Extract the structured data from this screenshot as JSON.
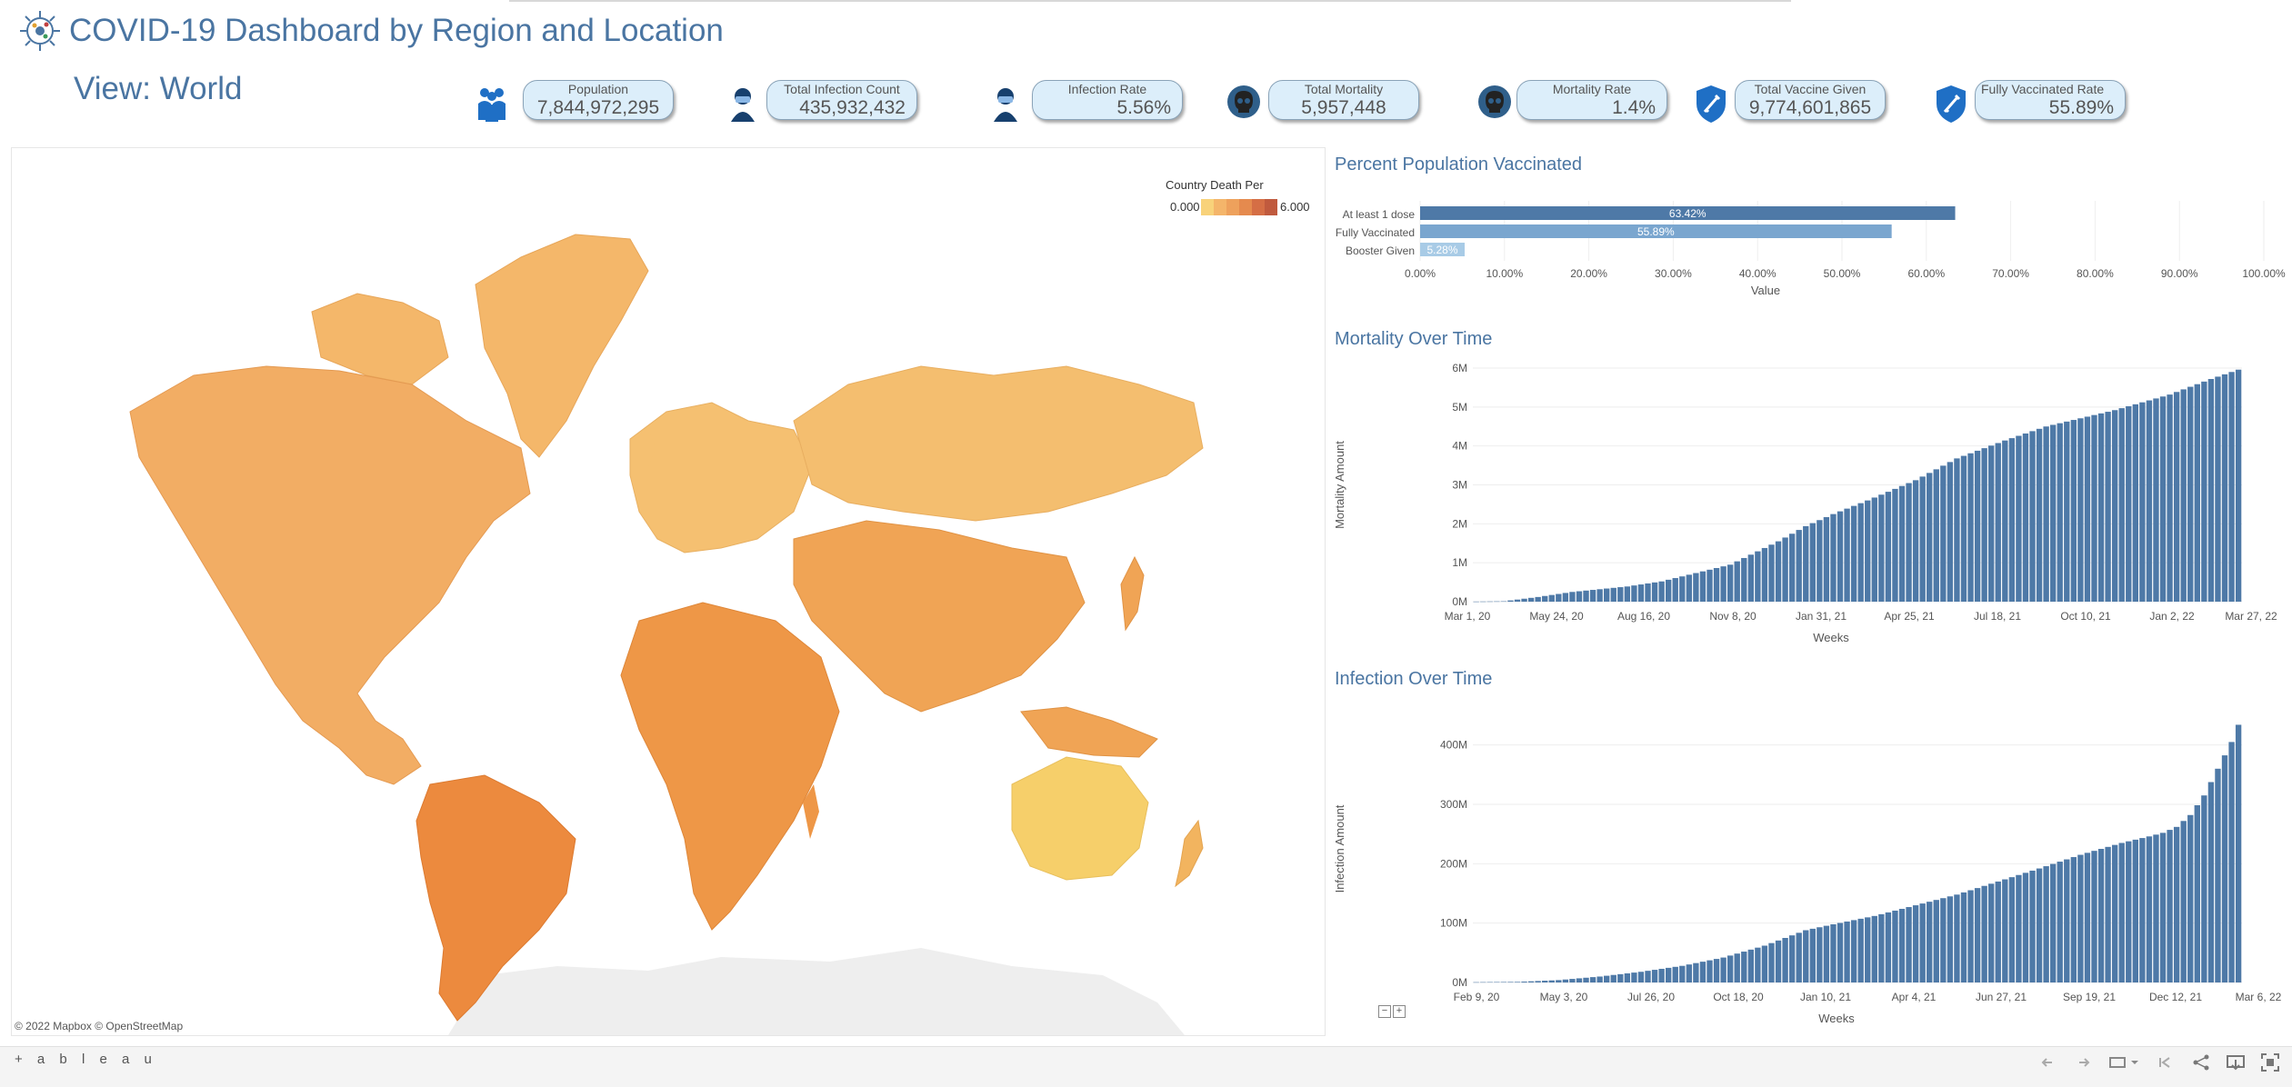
{
  "header": {
    "title": "COVID-19 Dashboard by Region and Location",
    "view": "View: World"
  },
  "kpis": [
    {
      "label": "Population",
      "value": "7,844,972,295",
      "icon": "people-icon"
    },
    {
      "label": "Total Infection Count",
      "value": "435,932,432",
      "icon": "masked-person-icon"
    },
    {
      "label": "Infection Rate",
      "value": "5.56%",
      "icon": "masked-person-icon"
    },
    {
      "label": "Total Mortality",
      "value": "5,957,448",
      "icon": "skull-icon"
    },
    {
      "label": "Mortality Rate",
      "value": "1.4%",
      "icon": "skull-icon"
    },
    {
      "label": "Total Vaccine Given",
      "value": "9,774,601,865",
      "icon": "syringe-shield-icon"
    },
    {
      "label": "Fully Vaccinated Rate",
      "value": "55.89%",
      "icon": "syringe-shield-icon"
    }
  ],
  "map": {
    "legend_title": "Country Death Per",
    "legend_min": "0.000",
    "legend_max": "6.000",
    "legend_colors": [
      "#f8d27a",
      "#f4b56a",
      "#eea15c",
      "#e58a4e",
      "#d56e45",
      "#c05a3e"
    ],
    "credit": "© 2022 Mapbox © OpenStreetMap"
  },
  "colors": {
    "accent": "#4a75a2",
    "bar": "#4e79a7",
    "bar_light": "#7aa6cf",
    "bar_lighter": "#a8cbe6"
  },
  "charts": [
    {
      "type": "bar",
      "orientation": "horizontal",
      "title": "Percent Population Vaccinated",
      "categories": [
        "At least 1 dose",
        "Fully Vaccinated",
        "Booster Given"
      ],
      "values": [
        63.42,
        55.89,
        5.28
      ],
      "labels": [
        "63.42%",
        "55.89%",
        "5.28%"
      ],
      "xlabel": "Value",
      "xlim": [
        0,
        100
      ],
      "ticks": [
        "0.00%",
        "10.00%",
        "20.00%",
        "30.00%",
        "40.00%",
        "50.00%",
        "60.00%",
        "70.00%",
        "80.00%",
        "90.00%",
        "100.00%"
      ]
    },
    {
      "type": "bar",
      "title": "Mortality Over Time",
      "xlabel": "Weeks",
      "ylabel": "Mortality Amount",
      "ylim": [
        0,
        6000000
      ],
      "y_ticks": [
        "0M",
        "1M",
        "2M",
        "3M",
        "4M",
        "5M",
        "6M"
      ],
      "x_ticks": [
        "Mar 1, 20",
        "May 24, 20",
        "Aug 16, 20",
        "Nov 8, 20",
        "Jan 31, 21",
        "Apr 25, 21",
        "Jul 18, 21",
        "Oct 10, 21",
        "Jan 2, 22",
        "Mar 27, 22"
      ],
      "weeks": 112,
      "anchors": [
        [
          0,
          0.003
        ],
        [
          4,
          0.01
        ],
        [
          9,
          0.12
        ],
        [
          14,
          0.25
        ],
        [
          22,
          0.39
        ],
        [
          27,
          0.52
        ],
        [
          37,
          0.95
        ],
        [
          44,
          1.55
        ],
        [
          48,
          1.94
        ],
        [
          52,
          2.25
        ],
        [
          57,
          2.6
        ],
        [
          64,
          3.12
        ],
        [
          70,
          3.68
        ],
        [
          77,
          4.14
        ],
        [
          83,
          4.5
        ],
        [
          93,
          4.92
        ],
        [
          101,
          5.32
        ],
        [
          107,
          5.72
        ],
        [
          111,
          5.96
        ]
      ]
    },
    {
      "type": "bar",
      "title": "Infection Over Time",
      "xlabel": "Weeks",
      "ylabel": "Infection Amount",
      "ylim": [
        0,
        450000000
      ],
      "y_ticks": [
        "0M",
        "100M",
        "200M",
        "300M",
        "400M"
      ],
      "x_ticks": [
        "Feb 9, 20",
        "May 3, 20",
        "Jul 26, 20",
        "Oct 18, 20",
        "Jan 10, 21",
        "Apr 4, 21",
        "Jun 27, 21",
        "Sep 19, 21",
        "Dec 12, 21",
        "Mar 6, 22"
      ],
      "weeks": 112,
      "anchors": [
        [
          0,
          0.5
        ],
        [
          6,
          1
        ],
        [
          12,
          4
        ],
        [
          18,
          10
        ],
        [
          24,
          18
        ],
        [
          30,
          28
        ],
        [
          36,
          42
        ],
        [
          42,
          62
        ],
        [
          48,
          88
        ],
        [
          52,
          98
        ],
        [
          58,
          112
        ],
        [
          64,
          130
        ],
        [
          70,
          148
        ],
        [
          76,
          170
        ],
        [
          82,
          192
        ],
        [
          88,
          215
        ],
        [
          94,
          235
        ],
        [
          98,
          246
        ],
        [
          100,
          252
        ],
        [
          102,
          262
        ],
        [
          104,
          282
        ],
        [
          106,
          315
        ],
        [
          108,
          360
        ],
        [
          110,
          405
        ],
        [
          111,
          434
        ]
      ]
    }
  ],
  "toolbar": {
    "brand": "+ a b l e a u"
  }
}
